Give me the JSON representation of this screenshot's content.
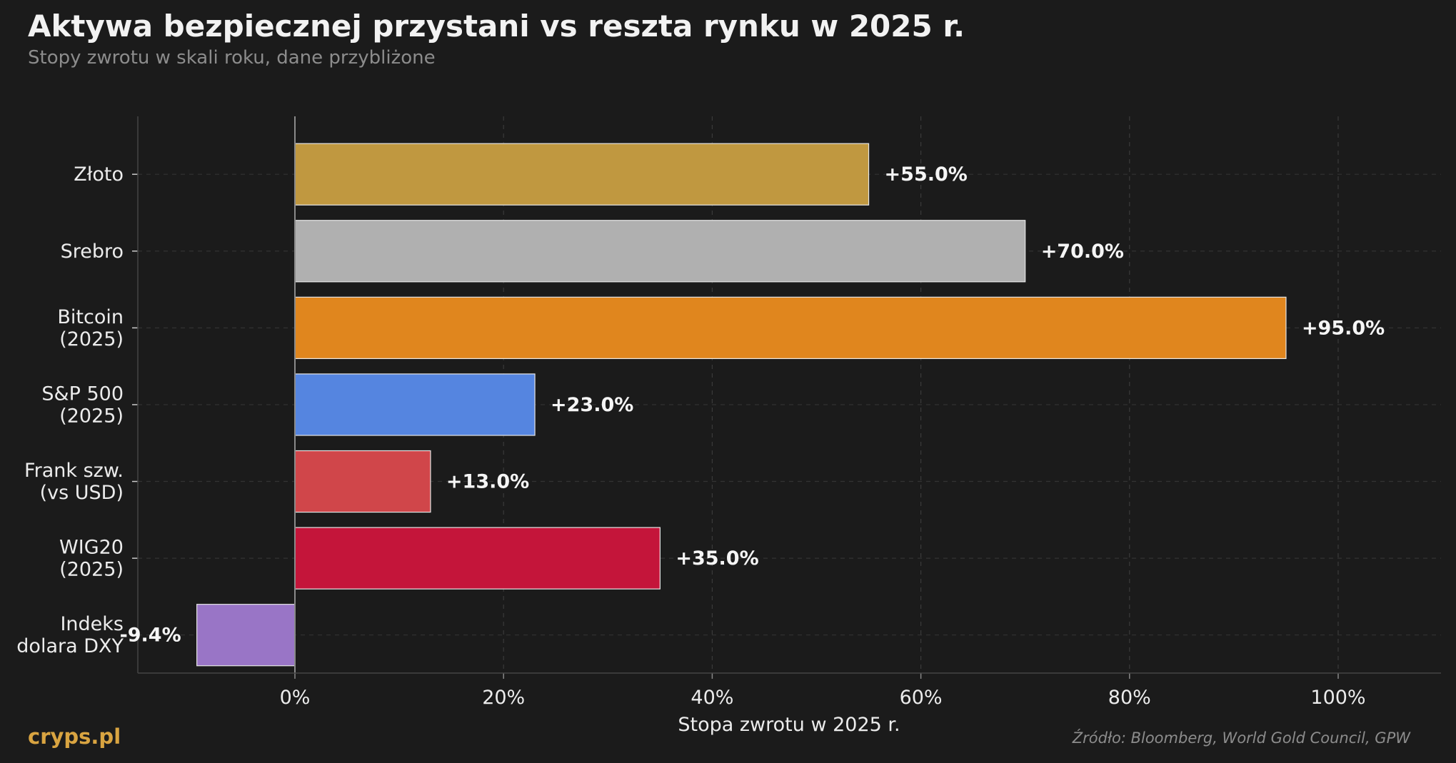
{
  "header": {
    "title": "Aktywa bezpiecznej przystani vs reszta rynku w 2025 r.",
    "subtitle": "Stopy zwrotu w skali roku, dane przybliżone"
  },
  "footer": {
    "brand": "cryps.pl",
    "source": "Źródło: Bloomberg, World Gold Council, GPW"
  },
  "chart_data": {
    "type": "bar",
    "orientation": "horizontal",
    "title": "Aktywa bezpiecznej przystani vs reszta rynku w 2025 r.",
    "subtitle": "Stopy zwrotu w skali roku, dane przybliżone",
    "xlabel": "Stopa zwrotu w 2025 r.",
    "ylabel": "",
    "xlim": [
      -15,
      110
    ],
    "xticks": [
      0,
      20,
      40,
      60,
      80,
      100
    ],
    "xtick_labels": [
      "0%",
      "20%",
      "40%",
      "60%",
      "80%",
      "100%"
    ],
    "grid": true,
    "categories": [
      [
        "Złoto"
      ],
      [
        "Srebro"
      ],
      [
        "Bitcoin",
        "(2025)"
      ],
      [
        "S&P 500",
        "(2025)"
      ],
      [
        "Frank szw.",
        "(vs USD)"
      ],
      [
        "WIG20",
        "(2025)"
      ],
      [
        "Indeks",
        "dolara DXY"
      ]
    ],
    "values": [
      55.0,
      70.0,
      95.0,
      23.0,
      13.0,
      35.0,
      -9.4
    ],
    "value_labels": [
      "+55.0%",
      "+70.0%",
      "+95.0%",
      "+23.0%",
      "+13.0%",
      "+35.0%",
      "-9.4%"
    ],
    "colors": [
      "#c09840",
      "#b0b0b0",
      "#e0861e",
      "#5585e0",
      "#d0464a",
      "#c4153a",
      "#9975c6"
    ]
  }
}
